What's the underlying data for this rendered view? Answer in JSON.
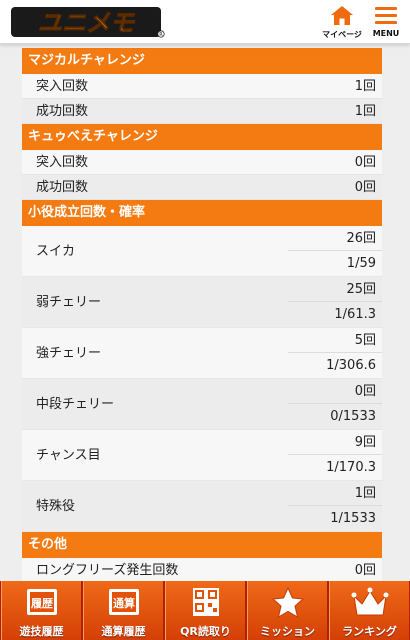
{
  "header": {
    "logo_text": "ユニメモ",
    "mypage_label": "マイページ",
    "menu_label": "MENU"
  },
  "sections": {
    "magical": {
      "title": "マジカルチャレンジ",
      "rows": [
        {
          "label": "突入回数",
          "value": "1回"
        },
        {
          "label": "成功回数",
          "value": "1回"
        }
      ]
    },
    "kyubey": {
      "title": "キュゥべえチャレンジ",
      "rows": [
        {
          "label": "突入回数",
          "value": "0回"
        },
        {
          "label": "成功回数",
          "value": "0回"
        }
      ]
    },
    "small_roles": {
      "title": "小役成立回数・確率",
      "rows": [
        {
          "label": "スイカ",
          "count": "26回",
          "prob": "1/59"
        },
        {
          "label": "弱チェリー",
          "count": "25回",
          "prob": "1/61.3"
        },
        {
          "label": "強チェリー",
          "count": "5回",
          "prob": "1/306.6"
        },
        {
          "label": "中段チェリー",
          "count": "0回",
          "prob": "0/1533"
        },
        {
          "label": "チャンス目",
          "count": "9回",
          "prob": "1/170.3"
        },
        {
          "label": "特殊役",
          "count": "1回",
          "prob": "1/1533"
        }
      ]
    },
    "other": {
      "title": "その他",
      "rows": [
        {
          "label": "ロングフリーズ発生回数",
          "value": "0回"
        }
      ]
    }
  },
  "bottom_nav": {
    "items": [
      {
        "label": "遊技履歴",
        "badge": "履歴"
      },
      {
        "label": "通算履歴",
        "badge": "通算"
      },
      {
        "label": "QR読取り"
      },
      {
        "label": "ミッション"
      },
      {
        "label": "ランキング"
      }
    ]
  },
  "colors": {
    "accent": "#f47a12",
    "nav_bg": "#d43f06"
  }
}
